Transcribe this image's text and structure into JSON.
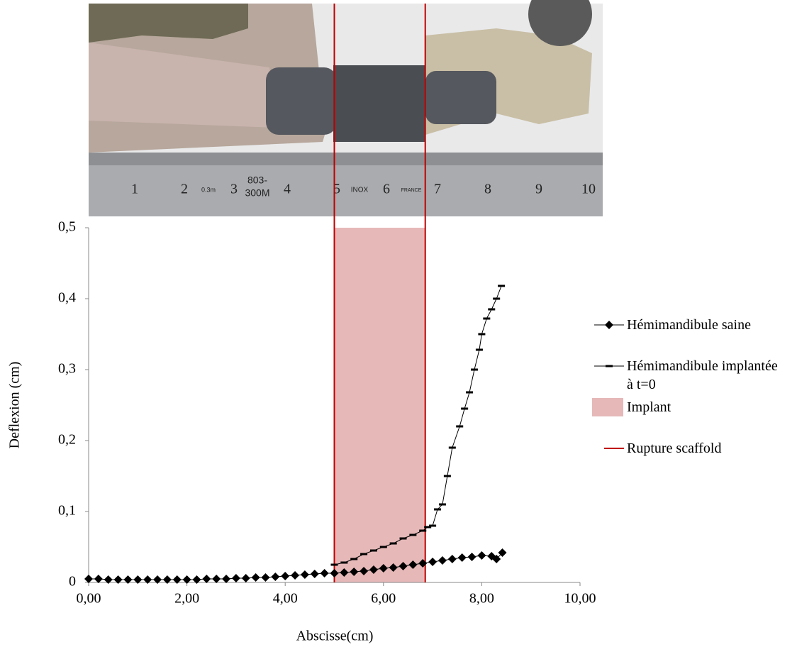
{
  "photo": {
    "ruler_numbers": [
      "1",
      "2",
      "3",
      "4",
      "5",
      "6",
      "7",
      "8",
      "9",
      "10"
    ],
    "ruler_texts": [
      "0.3m",
      "803-",
      "300M",
      "INOX",
      "FRANCE"
    ]
  },
  "chart_data": {
    "type": "scatter",
    "x_label": "Abscisse(cm)",
    "y_label": "Deflexion (cm)",
    "xlim": [
      0,
      10
    ],
    "ylim": [
      0,
      0.5
    ],
    "xticks": [
      {
        "value": 0,
        "label": "0,00"
      },
      {
        "value": 2,
        "label": "2,00"
      },
      {
        "value": 4,
        "label": "4,00"
      },
      {
        "value": 6,
        "label": "6,00"
      },
      {
        "value": 8,
        "label": "8,00"
      },
      {
        "value": 10,
        "label": "10,00"
      }
    ],
    "yticks": [
      0,
      {
        "value": 0.1,
        "label": "0,1"
      },
      {
        "value": 0.2,
        "label": "0,2"
      },
      {
        "value": 0.3,
        "label": "0,3"
      },
      {
        "value": 0.4,
        "label": "0,4"
      },
      {
        "value": 0.5,
        "label": "0,5"
      }
    ],
    "series": [
      {
        "name": "Hémimandibule saine",
        "color": "#000000",
        "marker": "diamond",
        "x": [
          0,
          0.2,
          0.4,
          0.6,
          0.8,
          1.0,
          1.2,
          1.4,
          1.6,
          1.8,
          2.0,
          2.2,
          2.4,
          2.6,
          2.8,
          3.0,
          3.2,
          3.4,
          3.6,
          3.8,
          4.0,
          4.2,
          4.4,
          4.6,
          4.8,
          5.0,
          5.2,
          5.4,
          5.6,
          5.8,
          6.0,
          6.2,
          6.4,
          6.6,
          6.8,
          7.0,
          7.2,
          7.4,
          7.6,
          7.8,
          8.0,
          8.2,
          8.3,
          8.42
        ],
        "values": [
          0.005,
          0.005,
          0.004,
          0.004,
          0.004,
          0.004,
          0.004,
          0.004,
          0.004,
          0.004,
          0.004,
          0.004,
          0.005,
          0.005,
          0.005,
          0.006,
          0.006,
          0.007,
          0.007,
          0.008,
          0.009,
          0.01,
          0.011,
          0.012,
          0.013,
          0.013,
          0.014,
          0.015,
          0.016,
          0.018,
          0.02,
          0.021,
          0.023,
          0.025,
          0.027,
          0.029,
          0.031,
          0.033,
          0.035,
          0.036,
          0.038,
          0.037,
          0.033,
          0.042
        ]
      },
      {
        "name": "Hémimandibule implantée\nà t=0",
        "color": "#000000",
        "marker": "dash",
        "x": [
          5.0,
          5.2,
          5.4,
          5.6,
          5.8,
          6.0,
          6.2,
          6.4,
          6.6,
          6.8,
          6.9,
          7.0,
          7.1,
          7.2,
          7.3,
          7.4,
          7.55,
          7.65,
          7.75,
          7.85,
          7.95,
          8.0,
          8.1,
          8.2,
          8.3,
          8.4
        ],
        "values": [
          0.025,
          0.028,
          0.033,
          0.04,
          0.045,
          0.05,
          0.055,
          0.062,
          0.067,
          0.073,
          0.078,
          0.08,
          0.103,
          0.11,
          0.15,
          0.19,
          0.22,
          0.245,
          0.268,
          0.3,
          0.328,
          0.35,
          0.372,
          0.385,
          0.4,
          0.418
        ]
      }
    ],
    "regions": [
      {
        "name": "Implant",
        "color": "#e6b8b8",
        "x": [
          5.0,
          6.85
        ],
        "y": [
          0,
          0.5
        ]
      }
    ],
    "vlines": [
      {
        "name": "Rupture scaffold",
        "color": "#c00000",
        "x": [
          5.0,
          6.85
        ]
      }
    ]
  }
}
